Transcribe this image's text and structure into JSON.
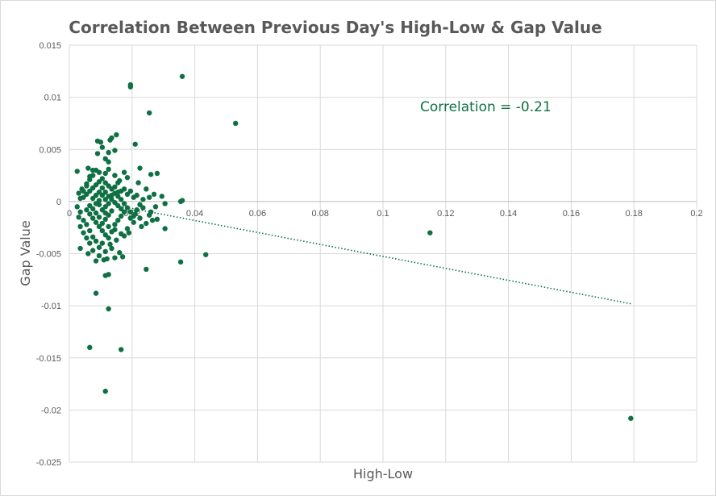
{
  "chart_data": {
    "type": "scatter",
    "title": "Correlation Between Previous Day's High-Low & Gap Value",
    "xlabel": "High-Low",
    "ylabel": "Gap Value",
    "xlim": [
      0,
      0.2
    ],
    "ylim": [
      -0.025,
      0.015
    ],
    "x_ticks": [
      "0",
      "0.02",
      "0.04",
      "0.06",
      "0.08",
      "0.1",
      "0.12",
      "0.14",
      "0.16",
      "0.18",
      "0.2"
    ],
    "y_ticks": [
      "0.015",
      "0.01",
      "0.005",
      "0",
      "-0.005",
      "-0.01",
      "-0.015",
      "-0.02",
      "-0.025"
    ],
    "grid": true,
    "legend": "none",
    "point_color": "#0e7043",
    "annotation": "Correlation = -0.21",
    "annotation_color": "#0e7043",
    "trendline": {
      "style": "dotted",
      "color": "#0e7043",
      "points": [
        [
          0.017,
          -0.0005
        ],
        [
          0.179,
          -0.0098
        ]
      ]
    },
    "series": [
      {
        "points": [
          [
            0.0195,
            0.0112
          ],
          [
            0.0195,
            0.011
          ],
          [
            0.036,
            0.012
          ],
          [
            0.0255,
            0.0085
          ],
          [
            0.053,
            0.0075
          ],
          [
            0.015,
            0.0064
          ],
          [
            0.009,
            0.0058
          ],
          [
            0.01,
            0.0057
          ],
          [
            0.013,
            0.0059
          ],
          [
            0.0135,
            0.0061
          ],
          [
            0.021,
            0.0055
          ],
          [
            0.0105,
            0.0052
          ],
          [
            0.009,
            0.0046
          ],
          [
            0.0125,
            0.0047
          ],
          [
            0.0145,
            0.0049
          ],
          [
            0.0115,
            0.0041
          ],
          [
            0.0125,
            0.0038
          ],
          [
            0.0225,
            0.0032
          ],
          [
            0.026,
            0.0026
          ],
          [
            0.028,
            0.0027
          ],
          [
            0.0025,
            0.0029
          ],
          [
            0.006,
            0.0032
          ],
          [
            0.0175,
            0.0028
          ],
          [
            0.0185,
            0.0023
          ],
          [
            0.016,
            0.002
          ],
          [
            0.022,
            0.0018
          ],
          [
            0.0245,
            0.0012
          ],
          [
            0.027,
            0.0007
          ],
          [
            0.0295,
            0.0005
          ],
          [
            0.0255,
            0.0004
          ],
          [
            0.036,
            0.0001
          ],
          [
            0.0355,
            0.0
          ],
          [
            0.0305,
            -0.0002
          ],
          [
            0.0275,
            -0.0005
          ],
          [
            0.026,
            -0.001
          ],
          [
            0.028,
            -0.0017
          ],
          [
            0.0305,
            -0.0026
          ],
          [
            0.0265,
            -0.0018
          ],
          [
            0.021,
            -0.0012
          ],
          [
            0.023,
            -0.0024
          ],
          [
            0.019,
            -0.003
          ],
          [
            0.0175,
            -0.0033
          ],
          [
            0.015,
            -0.0037
          ],
          [
            0.013,
            -0.0041
          ],
          [
            0.016,
            -0.0049
          ],
          [
            0.017,
            -0.0053
          ],
          [
            0.0145,
            -0.0054
          ],
          [
            0.012,
            -0.0055
          ],
          [
            0.011,
            -0.0056
          ],
          [
            0.0085,
            -0.0057
          ],
          [
            0.006,
            -0.005
          ],
          [
            0.0035,
            -0.0045
          ],
          [
            0.0045,
            -0.003
          ],
          [
            0.003,
            -0.0015
          ],
          [
            0.0025,
            -0.0005
          ],
          [
            0.003,
            0.0008
          ],
          [
            0.004,
            0.0012
          ],
          [
            0.0055,
            0.0017
          ],
          [
            0.0065,
            0.0021
          ],
          [
            0.0075,
            0.0025
          ],
          [
            0.0085,
            0.003
          ],
          [
            0.0095,
            0.0028
          ],
          [
            0.0105,
            0.0022
          ],
          [
            0.0115,
            0.0018
          ],
          [
            0.0125,
            0.0015
          ],
          [
            0.0135,
            0.0012
          ],
          [
            0.0145,
            0.0008
          ],
          [
            0.0155,
            0.0005
          ],
          [
            0.0165,
            0.0002
          ],
          [
            0.0175,
            -0.0002
          ],
          [
            0.0185,
            -0.0006
          ],
          [
            0.0195,
            -0.001
          ],
          [
            0.0205,
            -0.0014
          ],
          [
            0.0215,
            -0.0008
          ],
          [
            0.0225,
            -0.0003
          ],
          [
            0.0235,
            0.0002
          ],
          [
            0.0205,
            0.0004
          ],
          [
            0.0185,
            0.0007
          ],
          [
            0.0165,
            0.001
          ],
          [
            0.0145,
            0.0014
          ],
          [
            0.0055,
            -0.0008
          ],
          [
            0.0065,
            -0.0012
          ],
          [
            0.0075,
            -0.0016
          ],
          [
            0.0085,
            -0.002
          ],
          [
            0.0095,
            -0.0024
          ],
          [
            0.0105,
            -0.0028
          ],
          [
            0.0115,
            -0.0032
          ],
          [
            0.0125,
            -0.0035
          ],
          [
            0.0135,
            -0.0029
          ],
          [
            0.0145,
            -0.0022
          ],
          [
            0.0155,
            -0.0018
          ],
          [
            0.0165,
            -0.0014
          ],
          [
            0.0175,
            -0.001
          ],
          [
            0.0105,
            -0.004
          ],
          [
            0.0095,
            -0.0044
          ],
          [
            0.0085,
            -0.0038
          ],
          [
            0.0075,
            -0.0034
          ],
          [
            0.0065,
            -0.0028
          ],
          [
            0.0055,
            -0.0022
          ],
          [
            0.0045,
            -0.0018
          ],
          [
            0.0045,
            0.0004
          ],
          [
            0.0055,
            0.0007
          ],
          [
            0.0065,
            0.001
          ],
          [
            0.0075,
            0.0013
          ],
          [
            0.0085,
            0.0016
          ],
          [
            0.0095,
            0.0019
          ],
          [
            0.0105,
            0.0013
          ],
          [
            0.0115,
            0.0009
          ],
          [
            0.0125,
            0.0005
          ],
          [
            0.0135,
            0.0002
          ],
          [
            0.0145,
            -0.0001
          ],
          [
            0.0155,
            -0.0004
          ],
          [
            0.0165,
            -0.0007
          ],
          [
            0.0135,
            -0.0009
          ],
          [
            0.0125,
            -0.0013
          ],
          [
            0.0115,
            -0.0017
          ],
          [
            0.0105,
            -0.0021
          ],
          [
            0.0095,
            -0.0015
          ],
          [
            0.0085,
            -0.0011
          ],
          [
            0.0075,
            -0.0007
          ],
          [
            0.0065,
            -0.0004
          ],
          [
            0.0075,
            0.0003
          ],
          [
            0.0085,
            0.0006
          ],
          [
            0.0095,
            0.0009
          ],
          [
            0.0105,
            0.0006
          ],
          [
            0.0115,
            0.0002
          ],
          [
            0.0125,
            -0.0002
          ],
          [
            0.0095,
            -0.0003
          ],
          [
            0.0105,
            -0.0008
          ],
          [
            0.0115,
            -0.0011
          ],
          [
            0.0085,
            -0.0002
          ],
          [
            0.0095,
            0.0001
          ],
          [
            0.0115,
            -0.0005
          ],
          [
            0.0135,
            0.0006
          ],
          [
            0.0155,
            0.0009
          ],
          [
            0.0205,
            -0.002
          ],
          [
            0.0225,
            -0.0016
          ],
          [
            0.0245,
            -0.0021
          ],
          [
            0.0185,
            -0.0026
          ],
          [
            0.0165,
            -0.0031
          ],
          [
            0.0145,
            -0.0027
          ],
          [
            0.0125,
            -0.0024
          ],
          [
            0.0135,
            -0.0045
          ],
          [
            0.0115,
            -0.0048
          ],
          [
            0.0095,
            -0.0052
          ],
          [
            0.0075,
            -0.0047
          ],
          [
            0.0065,
            -0.004
          ],
          [
            0.0055,
            -0.0035
          ],
          [
            0.0035,
            -0.0024
          ],
          [
            0.0035,
            -0.001
          ],
          [
            0.0035,
            0.0003
          ],
          [
            0.0045,
            0.001
          ],
          [
            0.0055,
            0.0015
          ],
          [
            0.0065,
            0.0024
          ],
          [
            0.0075,
            0.003
          ],
          [
            0.0115,
            0.0027
          ],
          [
            0.0125,
            0.0031
          ],
          [
            0.0145,
            0.0025
          ],
          [
            0.0155,
            0.0018
          ],
          [
            0.0175,
            0.0012
          ],
          [
            0.0195,
            0.001
          ],
          [
            0.0215,
            0.0006
          ],
          [
            0.0235,
            -0.0006
          ],
          [
            0.0255,
            -0.0013
          ],
          [
            0.0195,
            -0.0016
          ],
          [
            0.0085,
            -0.0088
          ],
          [
            0.0115,
            -0.0071
          ],
          [
            0.0125,
            -0.007
          ],
          [
            0.0125,
            -0.0103
          ],
          [
            0.0065,
            -0.014
          ],
          [
            0.0165,
            -0.0142
          ],
          [
            0.0115,
            -0.0182
          ],
          [
            0.0245,
            -0.0065
          ],
          [
            0.0355,
            -0.0058
          ],
          [
            0.0435,
            -0.0051
          ],
          [
            0.115,
            -0.003
          ],
          [
            0.179,
            -0.0208
          ]
        ]
      }
    ]
  }
}
